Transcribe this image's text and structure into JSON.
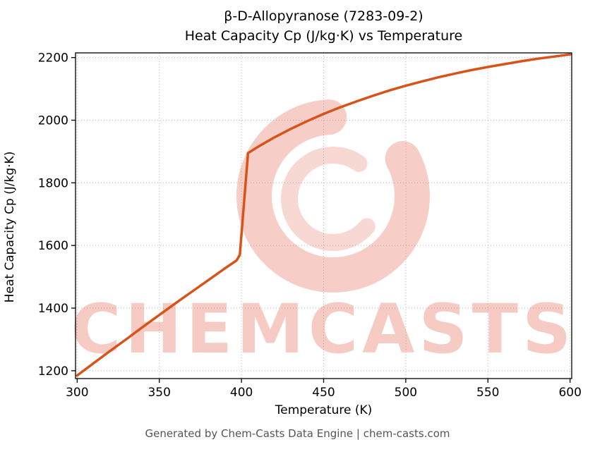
{
  "chart_data": {
    "type": "line",
    "title": "β-D-Allopyranose (7283-09-2)",
    "subtitle": "Heat Capacity Cp (J/kg·K) vs Temperature",
    "xlabel": "Temperature (K)",
    "ylabel": "Heat Capacity Cp (J/kg·K)",
    "x": [
      300,
      310,
      320,
      330,
      340,
      350,
      360,
      370,
      380,
      390,
      397,
      399,
      404,
      410,
      420,
      430,
      440,
      450,
      460,
      470,
      480,
      490,
      500,
      510,
      520,
      530,
      540,
      550,
      560,
      570,
      580,
      590,
      600
    ],
    "y": [
      1185,
      1224,
      1263,
      1301,
      1340,
      1378,
      1416,
      1453,
      1490,
      1527,
      1552,
      1570,
      1895,
      1915,
      1945,
      1972,
      1997,
      2020,
      2041,
      2060,
      2078,
      2095,
      2110,
      2124,
      2137,
      2149,
      2160,
      2170,
      2179,
      2188,
      2196,
      2203,
      2210
    ],
    "series_name": "Heat Capacity Cp",
    "xticks": [
      300,
      350,
      400,
      450,
      500,
      550,
      600
    ],
    "yticks": [
      1200,
      1400,
      1600,
      1800,
      2000,
      2200
    ],
    "xlim": [
      299,
      601
    ],
    "ylim": [
      1175,
      2215
    ],
    "grid": true,
    "legend": "none",
    "annotation": "step discontinuity (phase transition) near 400 K"
  },
  "colors": {
    "line": "#d95319",
    "watermark": "#e2604a",
    "grid": "#b8b8b8",
    "frame": "#000000",
    "footer_text": "#555555"
  },
  "watermark": {
    "text": "CHEMCASTS",
    "logo": "chemcasts-swirl-logo"
  },
  "footer": {
    "text": "Generated by Chem-Casts Data Engine | chem-casts.com"
  }
}
